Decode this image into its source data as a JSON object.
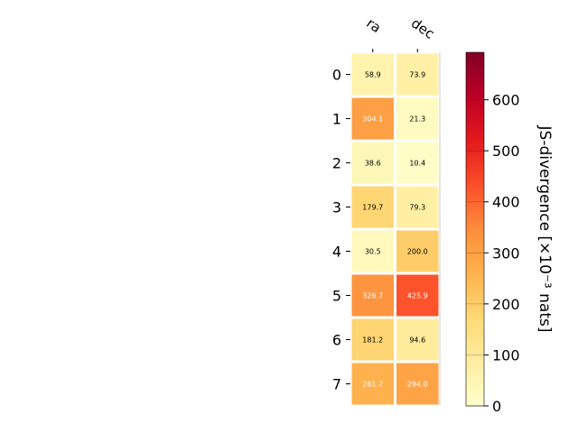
{
  "chart_data": {
    "type": "heatmap",
    "title": "",
    "columns": [
      "ra",
      "dec"
    ],
    "rows": [
      "0",
      "1",
      "2",
      "3",
      "4",
      "5",
      "6",
      "7"
    ],
    "values": [
      [
        58.9,
        73.9
      ],
      [
        304.1,
        21.3
      ],
      [
        38.6,
        10.4
      ],
      [
        179.7,
        79.3
      ],
      [
        30.5,
        200.0
      ],
      [
        326.7,
        425.9
      ],
      [
        181.2,
        94.6
      ],
      [
        261.7,
        294.0
      ]
    ],
    "value_labels": [
      [
        "58.9",
        "73.9"
      ],
      [
        "304.1",
        "21.3"
      ],
      [
        "38.6",
        "10.4"
      ],
      [
        "179.7",
        "79.3"
      ],
      [
        "30.5",
        "200.0"
      ],
      [
        "326.7",
        "425.9"
      ],
      [
        "181.2",
        "94.6"
      ],
      [
        "261.7",
        "294.0"
      ]
    ],
    "colorbar": {
      "label": "JS-divergence [×10⁻³ nats]",
      "range": [
        0,
        693
      ],
      "ticks": [
        0,
        100,
        200,
        300,
        400,
        500,
        600
      ],
      "colormap": "YlOrRd"
    },
    "xlabel": "",
    "ylabel": "",
    "grid": false
  }
}
